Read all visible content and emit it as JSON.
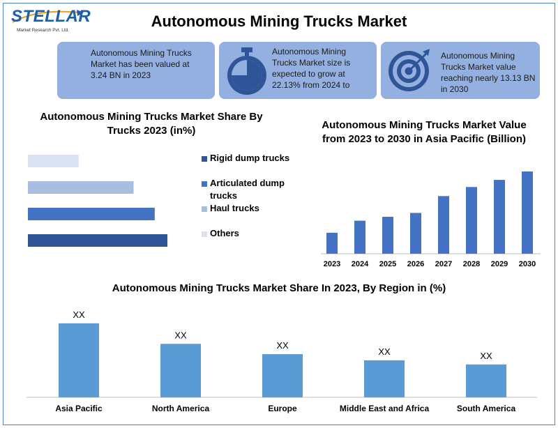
{
  "logo": {
    "word": "STELLAR",
    "sub": "Market Research Pvt. Ltd."
  },
  "title": "Autonomous Mining Trucks Market",
  "info_boxes": [
    {
      "text": "Autonomous Mining Trucks Market has been valued at 3.24 BN in 2023",
      "icon": "none"
    },
    {
      "text": "Autonomous Mining Trucks Market size is expected to grow at 22.13% from 2024 to",
      "icon": "stopwatch-icon"
    },
    {
      "text": "Autonomous Mining Trucks Market value reaching nearly 13.13 BN in 2030",
      "icon": "target-icon"
    }
  ],
  "colors": {
    "box": "#94b0e0",
    "icon": "#2f5597",
    "dark_blue": "#2f5597",
    "mid_blue": "#4472c4",
    "light_blue": "#a9bce1",
    "pale_blue": "#dae2f2",
    "region_bar": "#5b9bd5"
  },
  "chart_data": [
    {
      "type": "bar",
      "orientation": "horizontal",
      "title": "Autonomous Mining Trucks Market Share By Trucks 2023 (in%)",
      "categories": [
        "Others",
        "Haul trucks",
        "Articulated dump trucks",
        "Rigid dump trucks"
      ],
      "values": [
        12,
        25,
        30,
        33
      ],
      "legend": [
        "Rigid dump trucks",
        "Articulated dump trucks",
        "Haul trucks",
        "Others"
      ],
      "legend_position": "right"
    },
    {
      "type": "bar",
      "title": "Autonomous Mining Trucks Market Value from 2023 to 2030 in Asia Pacific (Billion)",
      "categories": [
        "2023",
        "2024",
        "2025",
        "2026",
        "2027",
        "2028",
        "2029",
        "2030"
      ],
      "values": [
        3.24,
        5.1,
        5.7,
        6.3,
        8.9,
        10.3,
        11.4,
        12.7
      ],
      "ylim": [
        0,
        13.13
      ]
    },
    {
      "type": "bar",
      "title": "Autonomous Mining Trucks Market Share In 2023, By Region in (%)",
      "categories": [
        "Asia Pacific",
        "North America",
        "Europe",
        "Middle East and Africa",
        "South America"
      ],
      "values": [
        36,
        26,
        21,
        18,
        16
      ],
      "data_labels": [
        "XX",
        "XX",
        "XX",
        "XX",
        "XX"
      ],
      "ylim": [
        0,
        40
      ]
    }
  ]
}
